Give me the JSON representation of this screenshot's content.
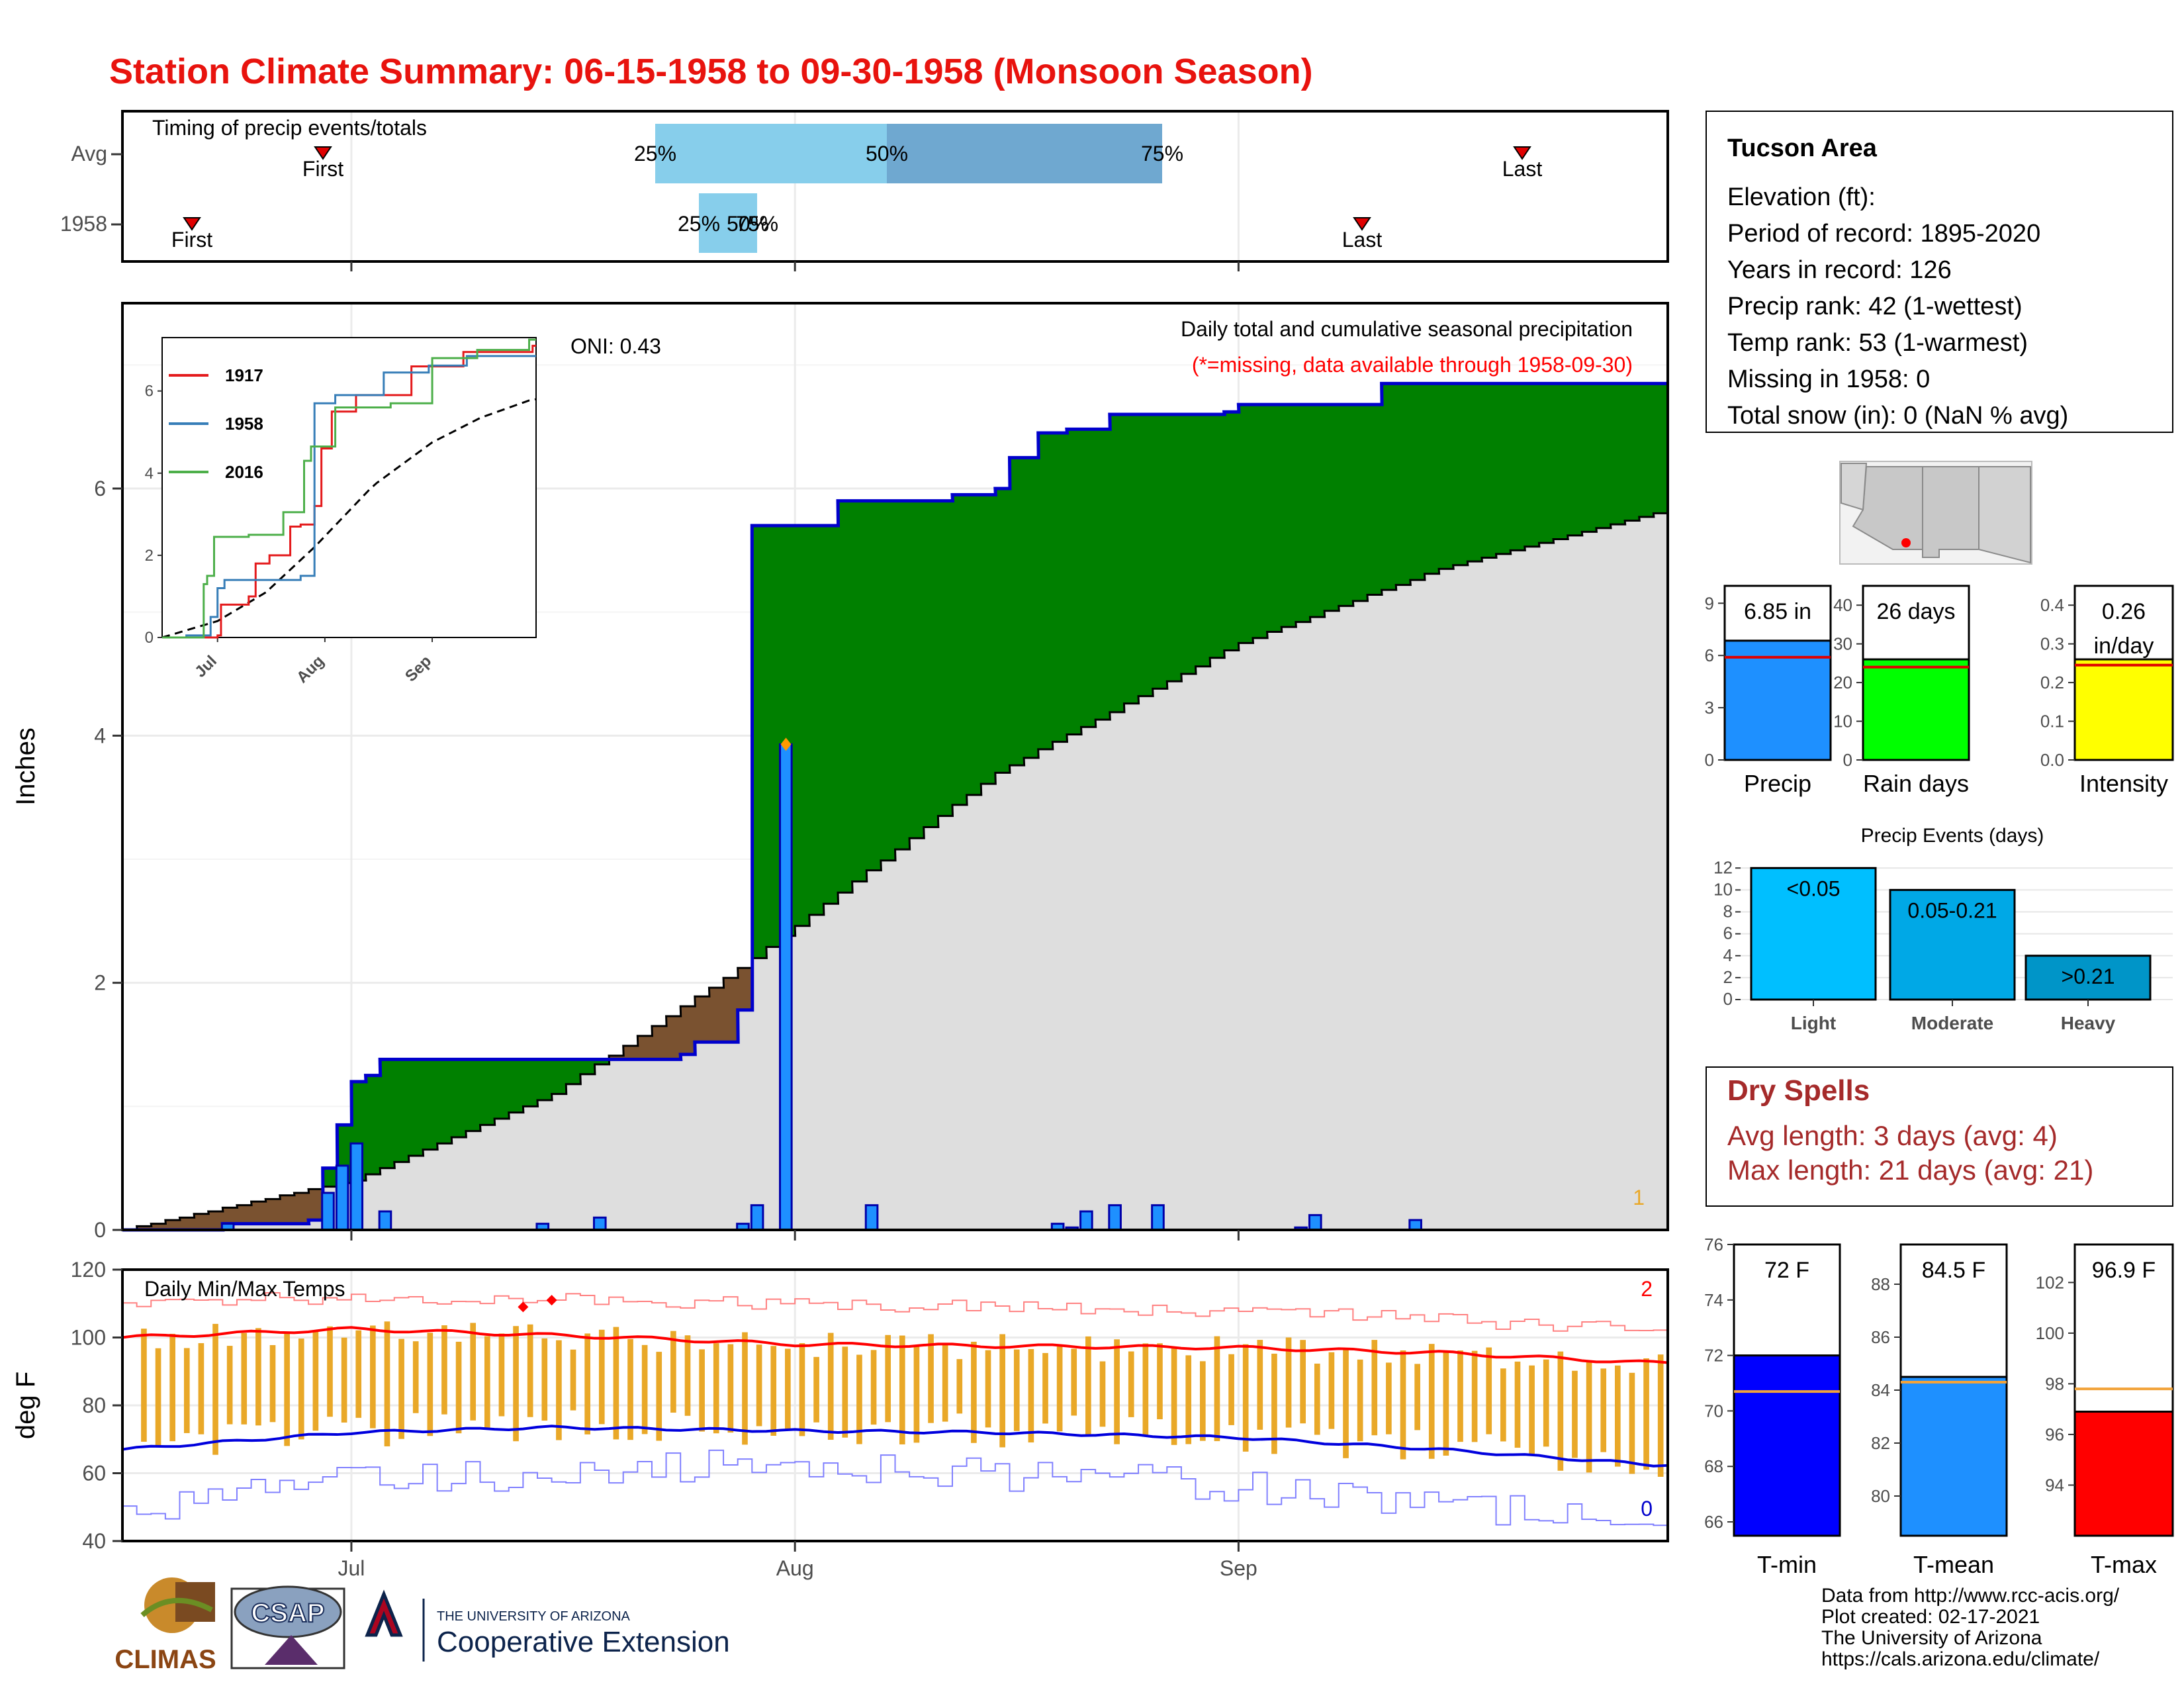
{
  "title": "Station Climate Summary: 06-15-1958 to 09-30-1958 (Monsoon Season)",
  "colors": {
    "title": "#e8130e",
    "green": "#008000",
    "gray": "#dedede",
    "brown": "#7a5230",
    "blue_line": "#0000cc",
    "bar_blue": "#1e90ff",
    "bar_orange": "#e9a828",
    "red": "#ff0000",
    "dry": "#a52a2a"
  },
  "month_labels": [
    "Jul",
    "Aug",
    "Sep"
  ],
  "timing": {
    "title": "Timing of precip events/totals",
    "rows": [
      "Avg",
      "1958"
    ],
    "first_label": "First",
    "last_label": "Last",
    "q25": "25%",
    "q50": "50%",
    "q75": "75%",
    "q50_1958_overlap": "50%",
    "avg": {
      "first": "Jul 1",
      "q25": "Jul 25",
      "q50": "Aug 3",
      "q75": "Aug 13",
      "last": "Sep 29"
    },
    "y1958": {
      "first": "Jun 18",
      "q25": "Jul 27",
      "q50": "Jul 29",
      "q75": "Jul 29",
      "last": "Sep 13"
    }
  },
  "main": {
    "ylabel": "Inches",
    "yticks": [
      "0",
      "2",
      "4",
      "6"
    ],
    "oni": "ONI: 0.43",
    "subtitle1": "Daily total and cumulative seasonal precipitation",
    "subtitle2": "(*=missing, data available through 1958-09-30)",
    "corner_count": "1"
  },
  "chart_data": [
    {
      "type": "area",
      "name": "daily-and-cumulative-precip",
      "x_range": [
        "1958-06-15",
        "1958-09-30"
      ],
      "ylim": [
        0,
        7.5
      ],
      "ylabel": "Inches",
      "cumulative_1958_steps": [
        [
          "06-15",
          0
        ],
        [
          "06-22",
          0.05
        ],
        [
          "06-28",
          0.08
        ],
        [
          "06-29",
          0.5
        ],
        [
          "06-30",
          0.85
        ],
        [
          "07-01",
          1.2
        ],
        [
          "07-02",
          1.25
        ],
        [
          "07-03",
          1.38
        ],
        [
          "07-24",
          1.42
        ],
        [
          "07-25",
          1.52
        ],
        [
          "07-28",
          1.78
        ],
        [
          "07-29",
          5.7
        ],
        [
          "08-04",
          5.9
        ],
        [
          "08-12",
          5.95
        ],
        [
          "08-15",
          6.0
        ],
        [
          "08-16",
          6.25
        ],
        [
          "08-18",
          6.45
        ],
        [
          "08-20",
          6.48
        ],
        [
          "08-23",
          6.6
        ],
        [
          "08-31",
          6.62
        ],
        [
          "09-01",
          6.68
        ],
        [
          "09-11",
          6.85
        ]
      ],
      "avg_cumulative": [
        [
          "06-15",
          0
        ],
        [
          "07-01",
          0.4
        ],
        [
          "07-15",
          1.1
        ],
        [
          "07-29",
          2.2
        ],
        [
          "08-15",
          3.7
        ],
        [
          "09-01",
          4.75
        ],
        [
          "09-15",
          5.35
        ],
        [
          "09-30",
          5.8
        ]
      ],
      "daily_bars": [
        [
          "06-22",
          0.05
        ],
        [
          "06-29",
          0.3
        ],
        [
          "06-30",
          0.52
        ],
        [
          "07-01",
          0.7
        ],
        [
          "07-03",
          0.15
        ],
        [
          "07-14",
          0.05
        ],
        [
          "07-18",
          0.1
        ],
        [
          "07-28",
          0.05
        ],
        [
          "07-29",
          0.2
        ],
        [
          "07-31",
          3.93
        ],
        [
          "08-06",
          0.2
        ],
        [
          "08-19",
          0.05
        ],
        [
          "08-20",
          0.02
        ],
        [
          "08-21",
          0.15
        ],
        [
          "08-23",
          0.2
        ],
        [
          "08-26",
          0.2
        ],
        [
          "09-05",
          0.02
        ],
        [
          "09-06",
          0.12
        ],
        [
          "09-13",
          0.08
        ]
      ]
    },
    {
      "type": "line",
      "name": "inset-cumulative-comparison",
      "ylim": [
        0,
        7.3
      ],
      "yticks": [
        "0",
        "2",
        "4",
        "6"
      ],
      "xticks": [
        "Jul",
        "Aug",
        "Sep"
      ],
      "series": [
        {
          "name": "1917",
          "color": "#e41a1c",
          "steps": [
            [
              "06-15",
              0
            ],
            [
              "07-01",
              0.05
            ],
            [
              "07-02",
              0.8
            ],
            [
              "07-10",
              1.0
            ],
            [
              "07-12",
              1.8
            ],
            [
              "07-16",
              2.0
            ],
            [
              "07-22",
              2.7
            ],
            [
              "07-25",
              2.75
            ],
            [
              "07-29",
              3.2
            ],
            [
              "07-31",
              4.6
            ],
            [
              "08-03",
              5.5
            ],
            [
              "08-10",
              5.9
            ],
            [
              "08-26",
              6.6
            ],
            [
              "09-10",
              6.95
            ],
            [
              "09-30",
              7.1
            ]
          ]
        },
        {
          "name": "1958",
          "color": "#377eb8",
          "steps": [
            [
              "06-15",
              0
            ],
            [
              "06-22",
              0.05
            ],
            [
              "06-29",
              0.5
            ],
            [
              "07-01",
              1.2
            ],
            [
              "07-03",
              1.4
            ],
            [
              "07-25",
              1.5
            ],
            [
              "07-29",
              5.7
            ],
            [
              "08-04",
              5.9
            ],
            [
              "08-18",
              6.45
            ],
            [
              "08-31",
              6.62
            ],
            [
              "09-11",
              6.85
            ]
          ]
        },
        {
          "name": "2016",
          "color": "#4daf4a",
          "steps": [
            [
              "06-15",
              0
            ],
            [
              "06-27",
              1.3
            ],
            [
              "06-28",
              1.5
            ],
            [
              "06-30",
              2.45
            ],
            [
              "07-10",
              2.5
            ],
            [
              "07-20",
              3.05
            ],
            [
              "07-26",
              4.3
            ],
            [
              "07-28",
              4.65
            ],
            [
              "08-04",
              5.6
            ],
            [
              "08-20",
              5.7
            ],
            [
              "09-01",
              6.8
            ],
            [
              "09-14",
              7.0
            ],
            [
              "09-29",
              7.25
            ]
          ]
        }
      ],
      "avg_series": [
        [
          "06-15",
          0
        ],
        [
          "07-01",
          0.4
        ],
        [
          "07-15",
          1.1
        ],
        [
          "07-29",
          2.2
        ],
        [
          "08-15",
          3.7
        ],
        [
          "09-01",
          4.75
        ],
        [
          "09-15",
          5.35
        ],
        [
          "09-30",
          5.8
        ]
      ]
    },
    {
      "type": "bar",
      "name": "daily-temps",
      "ylim": [
        40,
        120
      ],
      "yticks": [
        "40",
        "60",
        "80",
        "100",
        "120"
      ],
      "ylabel": "deg F",
      "title": "Daily Min/Max Temps",
      "count_high": "2",
      "count_low": "0",
      "record_high_points": [
        [
          "07-13",
          109
        ],
        [
          "07-15",
          111
        ]
      ],
      "avg_max": [
        [
          "06-15",
          100
        ],
        [
          "07-01",
          102.5
        ],
        [
          "07-20",
          100
        ],
        [
          "08-01",
          98
        ],
        [
          "08-15",
          97.5
        ],
        [
          "09-01",
          97
        ],
        [
          "09-15",
          95.5
        ],
        [
          "09-30",
          92.5
        ]
      ],
      "avg_min": [
        [
          "06-15",
          67
        ],
        [
          "07-01",
          72
        ],
        [
          "07-15",
          73.5
        ],
        [
          "08-01",
          72.5
        ],
        [
          "08-15",
          72
        ],
        [
          "09-01",
          70.5
        ],
        [
          "09-15",
          67
        ],
        [
          "09-30",
          62.5
        ]
      ],
      "record_max": [
        [
          "06-15",
          110
        ],
        [
          "07-01",
          112
        ],
        [
          "08-01",
          110
        ],
        [
          "09-01",
          108
        ],
        [
          "09-30",
          102
        ]
      ],
      "record_min": [
        [
          "06-15",
          50
        ],
        [
          "07-01",
          58
        ],
        [
          "08-01",
          63
        ],
        [
          "09-01",
          56
        ],
        [
          "09-30",
          45
        ]
      ]
    },
    {
      "type": "bar",
      "name": "precip-summary",
      "value": 6.85,
      "label": "6.85 in",
      "avg": 5.9,
      "ylim": [
        0,
        10
      ],
      "yticks": [
        "0",
        "3",
        "6",
        "9"
      ],
      "xlabel": "Precip",
      "color": "#1e90ff"
    },
    {
      "type": "bar",
      "name": "rain-days-summary",
      "value": 26,
      "label": "26 days",
      "avg": 24,
      "ylim": [
        0,
        45
      ],
      "yticks": [
        "0",
        "10",
        "20",
        "30",
        "40"
      ],
      "xlabel": "Rain days",
      "color": "#00ff00"
    },
    {
      "type": "bar",
      "name": "intensity-summary",
      "value": 0.26,
      "label1": "0.26",
      "label2": "in/day",
      "avg": 0.245,
      "ylim": [
        0,
        0.45
      ],
      "yticks": [
        "0.0",
        "0.1",
        "0.2",
        "0.3",
        "0.4"
      ],
      "xlabel": "Intensity",
      "color": "#ffff00"
    },
    {
      "type": "bar",
      "name": "precip-events",
      "title": "Precip Events (days)",
      "categories": [
        "Light",
        "Moderate",
        "Heavy"
      ],
      "values": [
        12,
        10,
        4
      ],
      "bar_labels": [
        "<0.05",
        "0.05-0.21",
        ">0.21"
      ],
      "colors": [
        "#00bfff",
        "#00a8e6",
        "#0095c8"
      ],
      "ylim": [
        0,
        12.5
      ],
      "yticks": [
        "0",
        "2",
        "4",
        "6",
        "8",
        "10",
        "12"
      ]
    },
    {
      "type": "bar",
      "name": "t-min-summary",
      "value": 72,
      "label": "72 F",
      "avg": 70.7,
      "ylim": [
        65.5,
        76
      ],
      "yticks": [
        "66",
        "68",
        "70",
        "72",
        "74",
        "76"
      ],
      "xlabel": "T-min",
      "color": "#0000ff"
    },
    {
      "type": "bar",
      "name": "t-mean-summary",
      "value": 84.5,
      "label": "84.5 F",
      "avg": 84.3,
      "ylim": [
        78.5,
        89.5
      ],
      "yticks": [
        "80",
        "82",
        "84",
        "86",
        "88"
      ],
      "xlabel": "T-mean",
      "color": "#1e90ff"
    },
    {
      "type": "bar",
      "name": "t-max-summary",
      "value": 96.9,
      "label": "96.9 F",
      "avg": 97.8,
      "ylim": [
        92,
        103.5
      ],
      "yticks": [
        "94",
        "96",
        "98",
        "100",
        "102"
      ],
      "xlabel": "T-max",
      "color": "#ff0000"
    }
  ],
  "info": {
    "station": "Tucson Area",
    "lines": [
      "Elevation (ft):",
      "Period of record: 1895-2020",
      "Years in record: 126",
      "Precip rank: 42 (1-wettest)",
      "Temp rank: 53 (1-warmest)",
      "Missing in 1958: 0",
      "Total snow (in): 0 (NaN % avg)"
    ]
  },
  "dry": {
    "title": "Dry Spells",
    "avg": "Avg length: 3 days (avg: 4)",
    "max": "Max length: 21 days (avg: 21)"
  },
  "logos": {
    "climas": "CLIMAS",
    "csap": "CSAP",
    "ua_small": "THE UNIVERSITY OF ARIZONA",
    "coop": "Cooperative Extension"
  },
  "credits": [
    "Data from http://www.rcc-acis.org/",
    "Plot created: 02-17-2021",
    "The University of Arizona",
    "https://cals.arizona.edu/climate/"
  ]
}
